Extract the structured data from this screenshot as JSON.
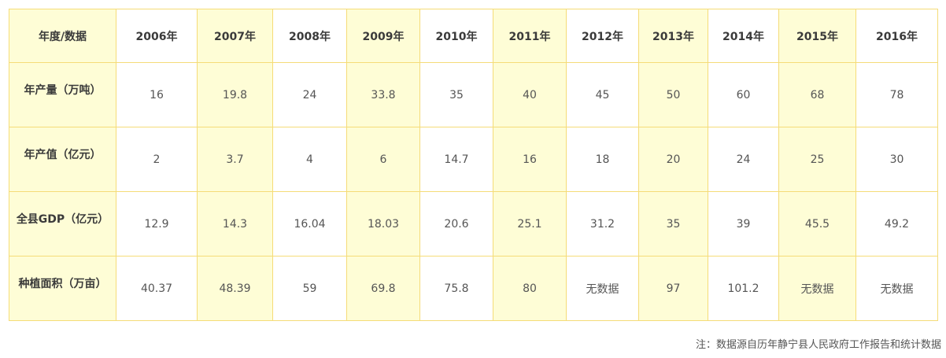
{
  "table": {
    "corner": "年度/数据",
    "years": [
      "2006年",
      "2007年",
      "2008年",
      "2009年",
      "2010年",
      "2011年",
      "2012年",
      "2013年",
      "2014年",
      "2015年",
      "2016年"
    ],
    "highlight_color": "#fefdd6",
    "border_color": "#f5dc78",
    "rows": [
      {
        "label": "年产量（万吨）",
        "values": [
          "16",
          "19.8",
          "24",
          "33.8",
          "35",
          "40",
          "45",
          "50",
          "60",
          "68",
          "78"
        ]
      },
      {
        "label": "年产值（亿元）",
        "values": [
          "2",
          "3.7",
          "4",
          "6",
          "14.7",
          "16",
          "18",
          "20",
          "24",
          "25",
          "30"
        ]
      },
      {
        "label": "全县GDP（亿元）",
        "values": [
          "12.9",
          "14.3",
          "16.04",
          "18.03",
          "20.6",
          "25.1",
          "31.2",
          "35",
          "39",
          "45.5",
          "49.2"
        ]
      },
      {
        "label": "种植面积（万亩）",
        "values": [
          "40.37",
          "48.39",
          "59",
          "69.8",
          "75.8",
          "80",
          "无数据",
          "97",
          "101.2",
          "无数据",
          "无数据"
        ]
      }
    ]
  },
  "footnote": "注：数据源自历年静宁县人民政府工作报告和统计数据"
}
